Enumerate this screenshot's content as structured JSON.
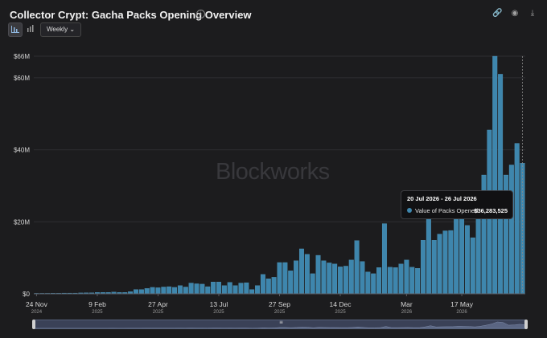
{
  "header": {
    "title": "Collector Crypt: Gacha Packs Opening Overview",
    "info_icon": "info-icon",
    "icons": [
      "link-icon",
      "camera-icon",
      "download-icon"
    ]
  },
  "controls": {
    "chart_type_icons": [
      "bar-chart-icon",
      "bar-chart-alt-icon"
    ],
    "period_label": "Weekly",
    "period_caret": "⌄"
  },
  "watermark": "Blockworks",
  "tooltip": {
    "date_range": "20 Jul 2026 - 26 Jul 2026",
    "series_label": "Value of Packs Opened",
    "value_text": "$36,283,525",
    "color": "#3e86ad"
  },
  "colors": {
    "bar": "#3e86ad",
    "bar_edge": "#5aa3c8",
    "grid": "#2e2e32",
    "axis_text": "#d6d6d6"
  },
  "chart_data": {
    "type": "bar",
    "series": [
      {
        "name": "Value of Packs Opened",
        "values": [
          0.1,
          0.1,
          0.1,
          0.15,
          0.15,
          0.2,
          0.2,
          0.2,
          0.25,
          0.3,
          0.3,
          0.4,
          0.4,
          0.4,
          0.5,
          0.4,
          0.4,
          0.6,
          1.2,
          1.2,
          1.5,
          1.8,
          1.7,
          1.9,
          2.0,
          1.8,
          2.3,
          1.9,
          3.0,
          2.8,
          2.7,
          2.0,
          3.3,
          3.3,
          2.3,
          3.2,
          2.3,
          3.0,
          3.1,
          1.2,
          2.3,
          5.4,
          4.2,
          4.6,
          8.7,
          8.7,
          6.4,
          9.2,
          12.5,
          11.0,
          5.6,
          10.7,
          9.2,
          8.6,
          8.3,
          7.5,
          7.7,
          9.4,
          14.8,
          9.0,
          6.1,
          5.6,
          7.3,
          19.5,
          7.4,
          7.3,
          8.3,
          9.4,
          7.4,
          7.1,
          14.9,
          27.5,
          14.9,
          16.6,
          17.5,
          17.6,
          22.5,
          21.0,
          19.0,
          15.6,
          22.5,
          33.0,
          45.5,
          66.0,
          61.0,
          33.0,
          35.8,
          41.8,
          36.3
        ]
      }
    ],
    "x_ticks": [
      {
        "label": "24 Nov",
        "year": "2024",
        "index": 0
      },
      {
        "label": "9 Feb",
        "year": "2025",
        "index": 11
      },
      {
        "label": "27 Apr",
        "year": "2025",
        "index": 22
      },
      {
        "label": "13 Jul",
        "year": "2025",
        "index": 33
      },
      {
        "label": "27 Sep",
        "year": "2025",
        "index": 44
      },
      {
        "label": "14 Dec",
        "year": "2025",
        "index": 55
      },
      {
        "label": "Mar",
        "year": "2026",
        "index": 67
      },
      {
        "label": "17 May",
        "year": "2026",
        "index": 77
      }
    ],
    "y_ticks": [
      {
        "label": "$0",
        "value": 0
      },
      {
        "label": "$20M",
        "value": 20
      },
      {
        "label": "$40M",
        "value": 40
      },
      {
        "label": "$60M",
        "value": 60
      },
      {
        "label": "$66M",
        "value": 66
      }
    ],
    "ylim": [
      0,
      66
    ],
    "y_unit": "$M",
    "grid": true,
    "highlight_index": 88
  }
}
